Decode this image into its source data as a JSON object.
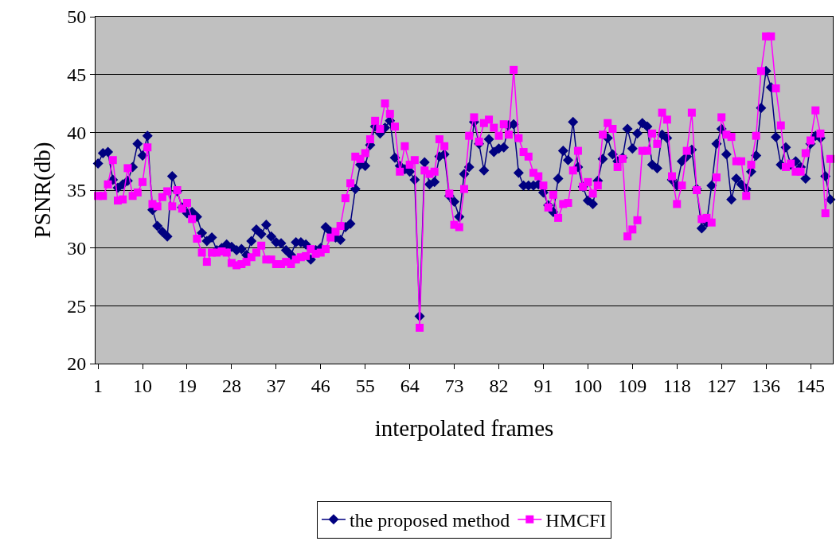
{
  "chart_data": {
    "type": "line",
    "xlabel": "interpolated frames",
    "ylabel": "PSNR(db)",
    "x": [
      1,
      2,
      3,
      4,
      5,
      6,
      7,
      8,
      9,
      10,
      11,
      12,
      13,
      14,
      15,
      16,
      17,
      18,
      19,
      20,
      21,
      22,
      23,
      24,
      25,
      26,
      27,
      28,
      29,
      30,
      31,
      32,
      33,
      34,
      35,
      36,
      37,
      38,
      39,
      40,
      41,
      42,
      43,
      44,
      45,
      46,
      47,
      48,
      49,
      50,
      51,
      52,
      53,
      54,
      55,
      56,
      57,
      58,
      59,
      60,
      61,
      62,
      63,
      64,
      65,
      66,
      67,
      68,
      69,
      70,
      71,
      72,
      73,
      74,
      75,
      76,
      77,
      78,
      79,
      80,
      81,
      82,
      83,
      84,
      85,
      86,
      87,
      88,
      89,
      90,
      91,
      92,
      93,
      94,
      95,
      96,
      97,
      98,
      99,
      100,
      101,
      102,
      103,
      104,
      105,
      106,
      107,
      108,
      109,
      110,
      111,
      112,
      113,
      114,
      115,
      116,
      117,
      118,
      119,
      120,
      121,
      122,
      123,
      124,
      125,
      126,
      127,
      128,
      129,
      130,
      131,
      132,
      133,
      134,
      135,
      136,
      137,
      138,
      139,
      140,
      141,
      142,
      143,
      144,
      145,
      146,
      147,
      148,
      149
    ],
    "series": [
      {
        "name": "the proposed method",
        "color": "#000080",
        "marker": "diamond",
        "values": [
          37.3,
          38.2,
          38.3,
          35.9,
          35.2,
          35.5,
          35.8,
          37.0,
          39.0,
          38.0,
          39.7,
          33.3,
          31.9,
          31.4,
          31.0,
          36.2,
          34.9,
          33.5,
          33.0,
          33.1,
          32.7,
          31.3,
          30.6,
          30.9,
          29.8,
          30.0,
          30.3,
          30.1,
          29.8,
          29.9,
          29.4,
          30.6,
          31.6,
          31.2,
          32.0,
          31.0,
          30.5,
          30.4,
          29.8,
          29.4,
          30.5,
          30.5,
          30.3,
          29.0,
          29.8,
          30.0,
          31.8,
          31.4,
          30.9,
          30.7,
          31.8,
          32.1,
          35.1,
          37.2,
          37.1,
          38.9,
          40.5,
          39.9,
          40.4,
          41.0,
          37.8,
          37.1,
          36.8,
          36.6,
          35.9,
          24.1,
          37.4,
          35.5,
          35.7,
          37.9,
          38.1,
          34.5,
          34.0,
          32.7,
          36.4,
          37.0,
          40.9,
          39.0,
          36.7,
          39.4,
          38.3,
          38.6,
          38.7,
          40.6,
          40.7,
          36.5,
          35.4,
          35.4,
          35.4,
          35.5,
          34.8,
          33.7,
          33.1,
          36.0,
          38.4,
          37.6,
          40.9,
          37.0,
          35.3,
          34.1,
          33.8,
          35.8,
          37.7,
          39.5,
          38.1,
          37.5,
          37.8,
          40.3,
          38.6,
          39.9,
          40.8,
          40.5,
          37.2,
          36.9,
          39.8,
          39.5,
          35.9,
          35.4,
          37.5,
          37.9,
          38.5,
          35.1,
          31.7,
          32.2,
          35.4,
          39.0,
          40.3,
          38.1,
          34.2,
          36.0,
          35.5,
          35.1,
          36.6,
          38.0,
          42.1,
          45.3,
          43.9,
          39.6,
          37.2,
          38.7,
          37.2,
          37.5,
          37.0,
          36.0,
          39.0,
          39.7,
          39.5,
          36.2,
          34.2
        ]
      },
      {
        "name": "HMCFI",
        "color": "#ff00ff",
        "marker": "square",
        "values": [
          34.5,
          34.5,
          35.5,
          37.6,
          34.1,
          34.2,
          36.9,
          34.5,
          34.8,
          35.7,
          38.7,
          33.8,
          33.6,
          34.4,
          34.9,
          33.6,
          35.0,
          33.4,
          33.9,
          32.5,
          30.8,
          29.6,
          28.8,
          29.6,
          29.6,
          29.7,
          29.6,
          28.7,
          28.5,
          28.6,
          28.8,
          29.2,
          29.6,
          30.2,
          29.0,
          29.0,
          28.6,
          28.6,
          28.8,
          28.6,
          29.0,
          29.2,
          29.3,
          29.9,
          29.5,
          29.6,
          29.9,
          30.9,
          31.4,
          31.9,
          34.3,
          35.6,
          37.9,
          37.7,
          38.2,
          39.4,
          41.0,
          40.3,
          42.5,
          41.6,
          40.5,
          36.6,
          38.8,
          37.2,
          37.6,
          23.1,
          36.7,
          36.4,
          36.6,
          39.4,
          38.8,
          34.7,
          32.0,
          31.8,
          35.1,
          39.7,
          41.3,
          39.2,
          40.8,
          41.1,
          40.4,
          39.7,
          40.7,
          39.8,
          45.4,
          39.5,
          38.3,
          37.9,
          36.5,
          36.2,
          35.4,
          33.5,
          34.6,
          32.6,
          33.8,
          33.9,
          36.7,
          38.4,
          35.3,
          35.7,
          34.7,
          35.4,
          39.8,
          40.8,
          40.3,
          37.0,
          37.7,
          31.0,
          31.6,
          32.4,
          38.4,
          38.4,
          39.9,
          39.0,
          41.7,
          41.1,
          36.2,
          33.8,
          35.4,
          38.4,
          41.7,
          35.0,
          32.5,
          32.6,
          32.2,
          36.1,
          41.3,
          39.8,
          39.6,
          37.5,
          37.5,
          34.5,
          37.2,
          39.7,
          45.3,
          48.3,
          48.3,
          43.8,
          40.6,
          37.0,
          37.3,
          36.6,
          36.6,
          38.2,
          39.3,
          41.9,
          39.9,
          33.0,
          37.7
        ]
      }
    ],
    "xlim": [
      0.5,
      149.5
    ],
    "xticks": [
      1,
      10,
      19,
      28,
      37,
      46,
      55,
      64,
      73,
      82,
      91,
      100,
      109,
      118,
      127,
      136,
      145
    ],
    "ylim": [
      20,
      50
    ],
    "yticks": [
      20,
      25,
      30,
      35,
      40,
      45,
      50
    ],
    "grid": "y",
    "legend": "bottom",
    "line_style": "solid"
  }
}
